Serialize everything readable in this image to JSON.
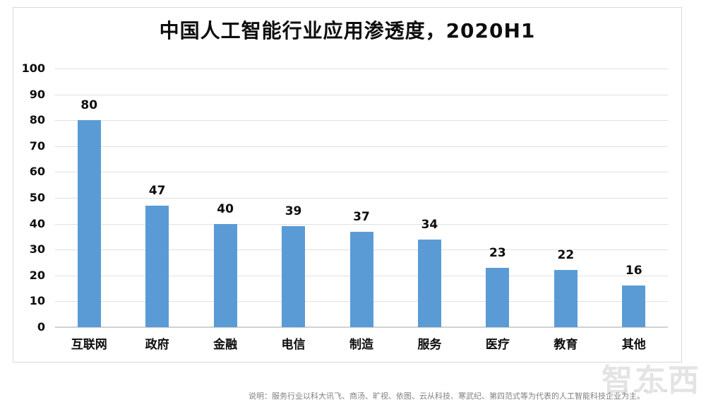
{
  "chart_data": {
    "type": "bar",
    "title": "中国人工智能行业应用渗透度，2020H1",
    "categories": [
      "互联网",
      "政府",
      "金融",
      "电信",
      "制造",
      "服务",
      "医疗",
      "教育",
      "其他"
    ],
    "values": [
      80,
      47,
      40,
      39,
      37,
      34,
      23,
      22,
      16
    ],
    "xlabel": "",
    "ylabel": "",
    "ylim": [
      0,
      100
    ],
    "ytick_step": 10,
    "yticks": [
      0,
      10,
      20,
      30,
      40,
      50,
      60,
      70,
      80,
      90,
      100
    ],
    "grid": true,
    "legend": "none",
    "bar_color": "#5b9bd5",
    "gridline_color": "#e0e0e0"
  },
  "note": "说明：服务行业以科大讯飞、商汤、旷视、依图、云从科技、寒武纪、第四范式等为代表的人工智能科技企业为主。",
  "watermark": "智东西"
}
